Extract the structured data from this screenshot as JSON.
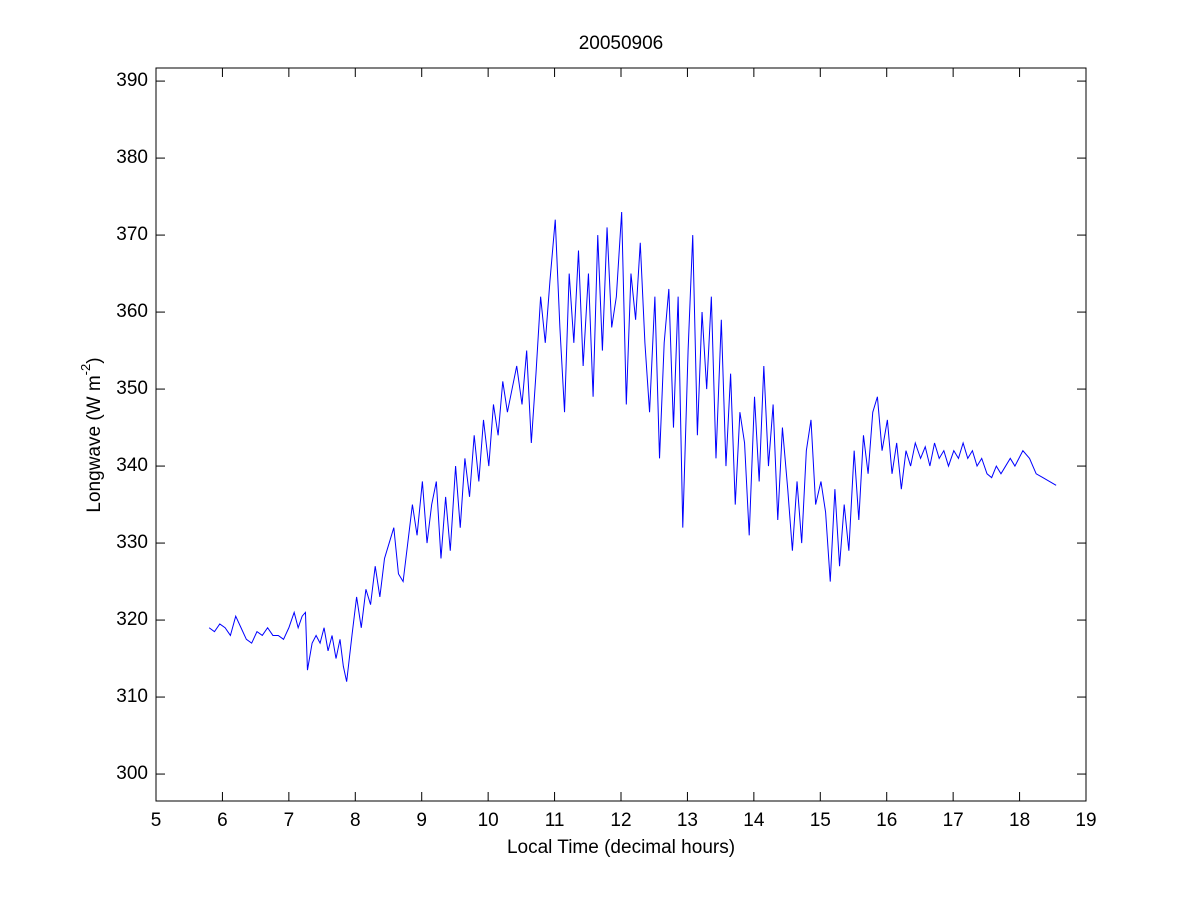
{
  "chart_data": {
    "type": "line",
    "title": "20050906",
    "x_label": "Local Time (decimal hours)",
    "y_label": {
      "text": "Longwave (W m",
      "sup": "-2",
      "end": ")"
    },
    "xlim": [
      5,
      19
    ],
    "xticks": [
      5,
      6,
      7,
      8,
      9,
      10,
      11,
      12,
      13,
      14,
      15,
      16,
      17,
      18,
      19
    ],
    "ylim": [
      296.5,
      391.7
    ],
    "yticks": [
      300,
      310,
      320,
      330,
      340,
      350,
      360,
      370,
      380,
      390
    ],
    "series": [
      {
        "color": "#0000ff",
        "x": [
          5.8,
          5.88,
          5.96,
          6.04,
          6.12,
          6.2,
          6.28,
          6.36,
          6.44,
          6.52,
          6.6,
          6.68,
          6.76,
          6.84,
          6.92,
          7.0,
          7.08,
          7.14,
          7.2,
          7.25,
          7.28,
          7.35,
          7.41,
          7.47,
          7.53,
          7.59,
          7.65,
          7.71,
          7.77,
          7.82,
          7.87,
          7.95,
          8.02,
          8.09,
          8.16,
          8.23,
          8.3,
          8.37,
          8.44,
          8.51,
          8.58,
          8.65,
          8.72,
          8.79,
          8.86,
          8.93,
          9.01,
          9.08,
          9.15,
          9.22,
          9.29,
          9.36,
          9.43,
          9.51,
          9.58,
          9.65,
          9.72,
          9.79,
          9.86,
          9.93,
          10.01,
          10.08,
          10.15,
          10.22,
          10.29,
          10.36,
          10.43,
          10.51,
          10.58,
          10.65,
          10.72,
          10.79,
          10.86,
          10.93,
          11.01,
          11.08,
          11.15,
          11.22,
          11.29,
          11.36,
          11.43,
          11.51,
          11.58,
          11.65,
          11.72,
          11.79,
          11.86,
          11.93,
          12.01,
          12.08,
          12.15,
          12.22,
          12.29,
          12.36,
          12.43,
          12.51,
          12.58,
          12.65,
          12.72,
          12.79,
          12.86,
          12.93,
          13.01,
          13.08,
          13.15,
          13.22,
          13.29,
          13.36,
          13.43,
          13.51,
          13.58,
          13.65,
          13.72,
          13.79,
          13.86,
          13.93,
          14.01,
          14.08,
          14.15,
          14.22,
          14.29,
          14.36,
          14.43,
          14.51,
          14.58,
          14.65,
          14.72,
          14.79,
          14.86,
          14.93,
          15.01,
          15.08,
          15.15,
          15.22,
          15.29,
          15.36,
          15.43,
          15.51,
          15.58,
          15.65,
          15.72,
          15.79,
          15.86,
          15.93,
          16.01,
          16.08,
          16.15,
          16.22,
          16.29,
          16.36,
          16.43,
          16.51,
          16.58,
          16.65,
          16.72,
          16.79,
          16.86,
          16.93,
          17.01,
          17.08,
          17.15,
          17.22,
          17.29,
          17.36,
          17.43,
          17.51,
          17.58,
          17.65,
          17.72,
          17.79,
          17.86,
          17.93,
          18.05,
          18.15,
          18.25,
          18.35,
          18.45,
          18.55
        ],
        "values": [
          319,
          318.5,
          319.5,
          319,
          318,
          320.5,
          319,
          317.5,
          317,
          318.5,
          318,
          319,
          318,
          318,
          317.5,
          319,
          321,
          319,
          320.5,
          321,
          313.5,
          317,
          318,
          317,
          319,
          316,
          318,
          315,
          317.5,
          314,
          312,
          318,
          323,
          319,
          324,
          322,
          327,
          323,
          328,
          330,
          332,
          326,
          325,
          330,
          335,
          331,
          338,
          330,
          335,
          338,
          328,
          336,
          329,
          340,
          332,
          341,
          336,
          344,
          338,
          346,
          340,
          348,
          344,
          351,
          347,
          350,
          353,
          348,
          355,
          343,
          352,
          362,
          356,
          364,
          372,
          358,
          347,
          365,
          356,
          368,
          353,
          365,
          349,
          370,
          355,
          371,
          358,
          362,
          373,
          348,
          365,
          359,
          369,
          356,
          347,
          362,
          341,
          356,
          363,
          345,
          362,
          332,
          355,
          370,
          344,
          360,
          350,
          362,
          341,
          359,
          340,
          352,
          335,
          347,
          343,
          331,
          349,
          338,
          353,
          340,
          348,
          333,
          345,
          337,
          329,
          338,
          330,
          342,
          346,
          335,
          338,
          334,
          325,
          337,
          327,
          335,
          329,
          342,
          333,
          344,
          339,
          347,
          349,
          342,
          346,
          339,
          343,
          337,
          342,
          340,
          343,
          341,
          342.5,
          340,
          343,
          341,
          342,
          340,
          342,
          341,
          343,
          341,
          342,
          340,
          341,
          339,
          338.5,
          340,
          339,
          340,
          341,
          340,
          342,
          341,
          339,
          338.5,
          338,
          337.5
        ]
      }
    ]
  }
}
